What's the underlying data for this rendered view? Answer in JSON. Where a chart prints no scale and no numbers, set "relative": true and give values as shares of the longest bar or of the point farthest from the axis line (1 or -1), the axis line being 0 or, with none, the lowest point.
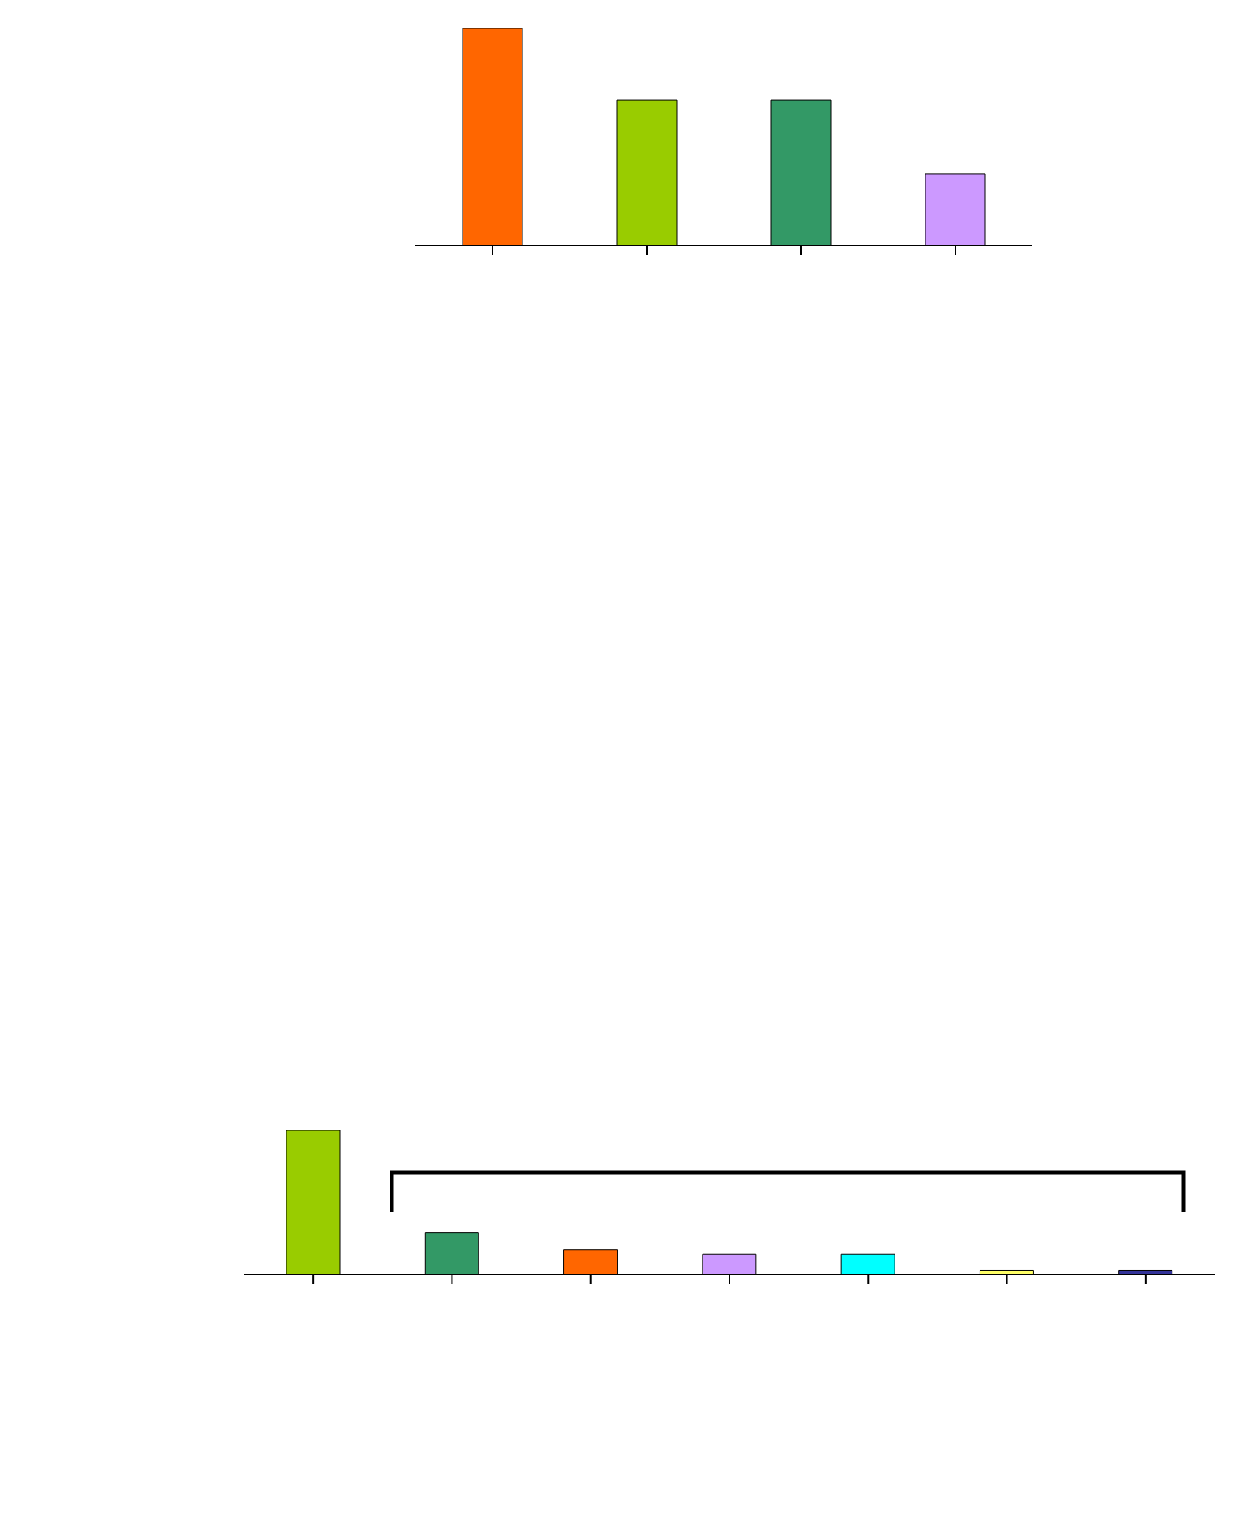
{
  "chart_data": [
    {
      "type": "bar",
      "relative": true,
      "categories": [
        null,
        null,
        null,
        null
      ],
      "values": [
        1,
        0.67,
        0.67,
        0.33
      ],
      "colors": [
        "#ff6600",
        "#99cc00",
        "#339966",
        "#cc99ff"
      ]
    },
    {
      "type": "bar",
      "relative": true,
      "categories": [
        null,
        null,
        null,
        null,
        null,
        null,
        null
      ],
      "values": [
        1,
        0.29,
        0.17,
        0.14,
        0.14,
        0.03,
        0.03
      ],
      "colors": [
        "#99cc00",
        "#339966",
        "#ff6600",
        "#cc99ff",
        "#00ffff",
        "#ffff66",
        "#333399"
      ]
    }
  ]
}
